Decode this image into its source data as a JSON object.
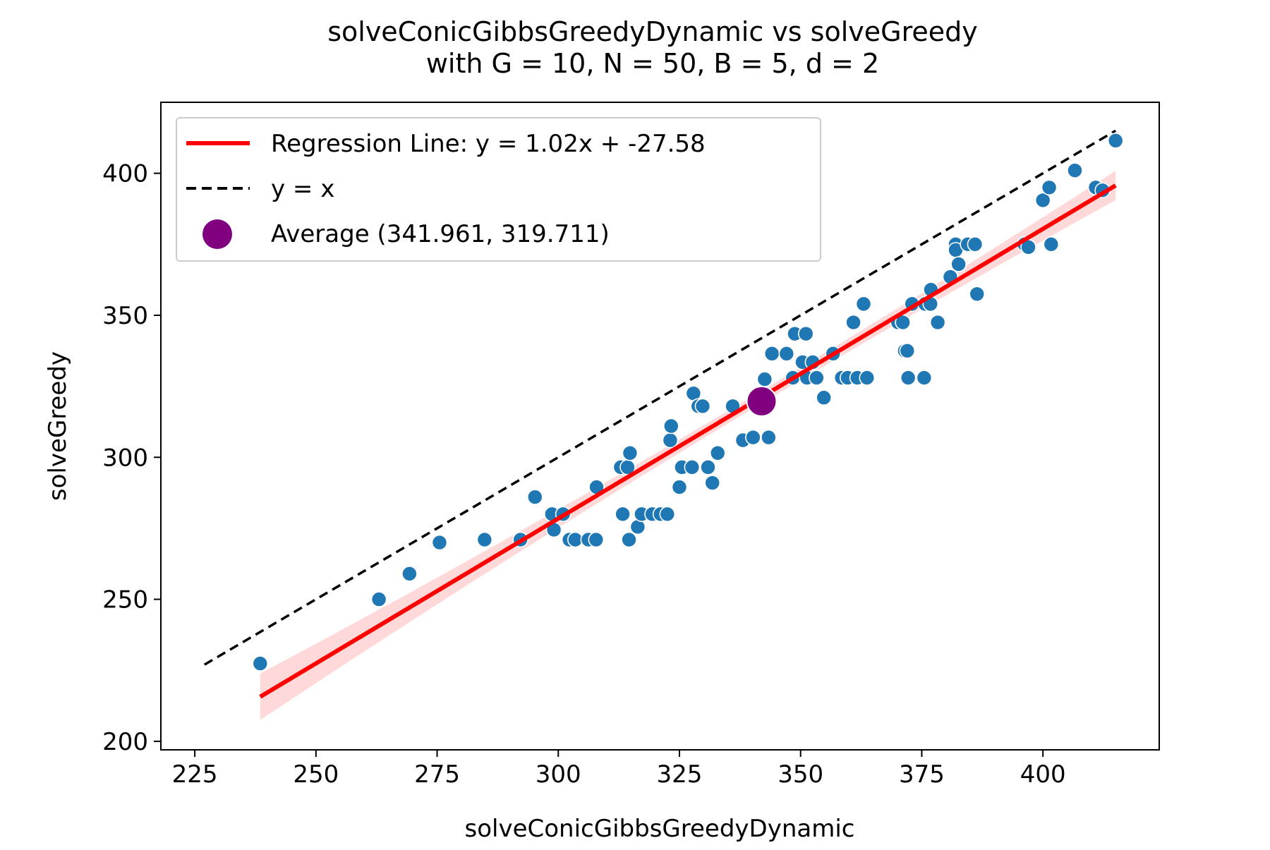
{
  "chart_data": {
    "type": "scatter",
    "title": "solveConicGibbsGreedyDynamic vs solveGreedy",
    "subtitle": "with G = 10, N = 50, B = 5, d = 2",
    "xlabel": "solveConicGibbsGreedyDynamic",
    "ylabel": "solveGreedy",
    "xlim": [
      218,
      424
    ],
    "ylim": [
      197,
      425
    ],
    "xticks": [
      225,
      250,
      275,
      300,
      325,
      350,
      375,
      400
    ],
    "yticks": [
      200,
      250,
      300,
      350,
      400
    ],
    "grid": false,
    "legend_position": "upper-left",
    "colors": {
      "points": "#1f77b4",
      "regression": "#ff0000",
      "band": "#ffcccc",
      "identity": "#000000",
      "average": "#800080"
    },
    "regression": {
      "label": "Regression Line: y = 1.02x + -27.58",
      "slope": 1.02,
      "intercept": -27.58,
      "x_range": [
        238.5,
        415.0
      ]
    },
    "identity_line": {
      "label": "y = x",
      "x_range": [
        227,
        415
      ]
    },
    "average": {
      "label": "Average (341.961, 319.711)",
      "x": 341.961,
      "y": 319.711
    },
    "points": [
      [
        238.5,
        227.4
      ],
      [
        263,
        250
      ],
      [
        269.3,
        259
      ],
      [
        275.5,
        270
      ],
      [
        284.8,
        271
      ],
      [
        292.2,
        271
      ],
      [
        295.2,
        286
      ],
      [
        298.7,
        280
      ],
      [
        299.1,
        274.5
      ],
      [
        301,
        280
      ],
      [
        302.3,
        271
      ],
      [
        303.5,
        271
      ],
      [
        306.2,
        271
      ],
      [
        307.8,
        271
      ],
      [
        307.9,
        289.5
      ],
      [
        312.9,
        296.5
      ],
      [
        313.3,
        280
      ],
      [
        314.3,
        296.5
      ],
      [
        314.6,
        271
      ],
      [
        314.8,
        301.5
      ],
      [
        316.4,
        275.5
      ],
      [
        317.2,
        280
      ],
      [
        319.4,
        280
      ],
      [
        321.1,
        280
      ],
      [
        322.5,
        280
      ],
      [
        323.1,
        306
      ],
      [
        323.3,
        311
      ],
      [
        325,
        289.5
      ],
      [
        325.5,
        296.5
      ],
      [
        327.6,
        296.5
      ],
      [
        327.9,
        322.5
      ],
      [
        328.9,
        318
      ],
      [
        329.8,
        318
      ],
      [
        330.9,
        296.5
      ],
      [
        331.8,
        291
      ],
      [
        332.9,
        301.5
      ],
      [
        336,
        318
      ],
      [
        338.1,
        306
      ],
      [
        340.2,
        307
      ],
      [
        342.6,
        327.5
      ],
      [
        343.4,
        307
      ],
      [
        344.1,
        336.5
      ],
      [
        347.1,
        336.5
      ],
      [
        348.4,
        328
      ],
      [
        348.8,
        343.5
      ],
      [
        350.4,
        333.5
      ],
      [
        351.1,
        343.5
      ],
      [
        351.3,
        328
      ],
      [
        352.5,
        333.5
      ],
      [
        353.3,
        328
      ],
      [
        354.8,
        321
      ],
      [
        356.7,
        336.5
      ],
      [
        358.5,
        328
      ],
      [
        359.7,
        328
      ],
      [
        360.9,
        347.5
      ],
      [
        361.7,
        328
      ],
      [
        363,
        354
      ],
      [
        363.7,
        328
      ],
      [
        370.1,
        347.5
      ],
      [
        371.1,
        347.5
      ],
      [
        371.5,
        337.5
      ],
      [
        372,
        337.5
      ],
      [
        372.2,
        328
      ],
      [
        373,
        354
      ],
      [
        375.5,
        328
      ],
      [
        375.7,
        354
      ],
      [
        376.8,
        354
      ],
      [
        376.9,
        359
      ],
      [
        378.3,
        347.5
      ],
      [
        380.9,
        363.5
      ],
      [
        382,
        375
      ],
      [
        382,
        373
      ],
      [
        382.6,
        368
      ],
      [
        384.5,
        375
      ],
      [
        386,
        375
      ],
      [
        386.4,
        357.5
      ],
      [
        396.2,
        375
      ],
      [
        397,
        374
      ],
      [
        400,
        390.5
      ],
      [
        401.3,
        395
      ],
      [
        401.7,
        375
      ],
      [
        406.6,
        401
      ],
      [
        410.9,
        395
      ],
      [
        412.3,
        394
      ],
      [
        415,
        411.5
      ]
    ]
  }
}
